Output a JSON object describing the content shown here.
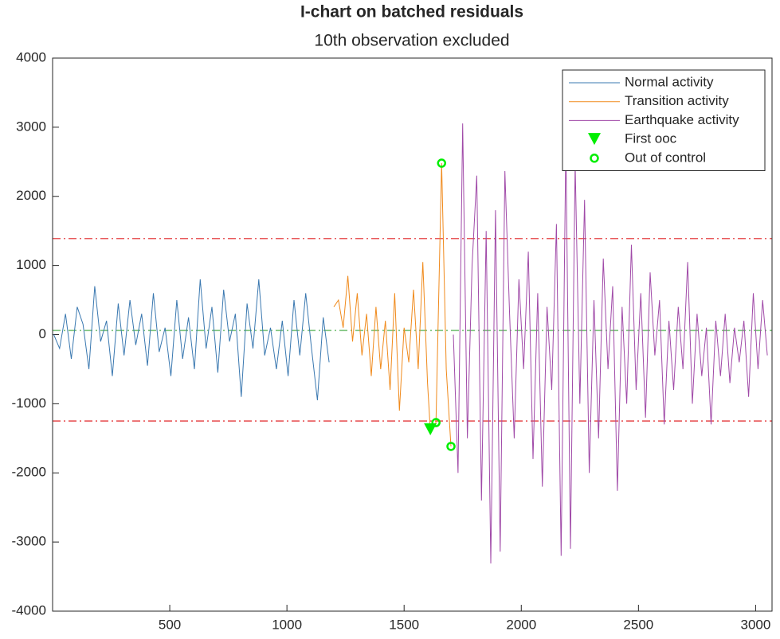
{
  "chart_data": {
    "type": "line",
    "title": "I-chart on batched residuals",
    "subtitle": "10th observation excluded",
    "xlim": [
      0,
      3070
    ],
    "ylim": [
      -4000,
      4000
    ],
    "xticks": [
      500,
      1000,
      1500,
      2000,
      2500,
      3000
    ],
    "yticks": [
      -4000,
      -3000,
      -2000,
      -1000,
      0,
      1000,
      2000,
      3000,
      4000
    ],
    "legend": "top-right",
    "hlines": [
      {
        "value": 1390,
        "color": "#e8585a",
        "style": "dashdot"
      },
      {
        "value": 60,
        "color": "#7dc47d",
        "style": "dashdot"
      },
      {
        "value": -1250,
        "color": "#e8585a",
        "style": "dashdot"
      }
    ],
    "series": [
      {
        "name": "Normal activity",
        "color": "#3a78b0",
        "marker": "none",
        "x": [
          5,
          30,
          55,
          80,
          105,
          130,
          155,
          180,
          205,
          230,
          255,
          280,
          305,
          330,
          355,
          380,
          405,
          430,
          455,
          480,
          505,
          530,
          555,
          580,
          605,
          630,
          655,
          680,
          705,
          730,
          755,
          780,
          805,
          830,
          855,
          880,
          905,
          930,
          955,
          980,
          1005,
          1030,
          1055,
          1080,
          1105,
          1130,
          1155,
          1180
        ],
        "values": [
          0,
          -200,
          300,
          -350,
          400,
          150,
          -500,
          700,
          -100,
          200,
          -600,
          450,
          -300,
          500,
          -150,
          300,
          -450,
          600,
          -250,
          100,
          -600,
          500,
          -350,
          250,
          -500,
          800,
          -200,
          400,
          -550,
          650,
          -100,
          300,
          -900,
          450,
          -200,
          800,
          -300,
          100,
          -500,
          200,
          -600,
          500,
          -300,
          600,
          -200,
          -950,
          250,
          -400
        ]
      },
      {
        "name": "Transition activity",
        "color": "#f08a1c",
        "marker": "none",
        "x": [
          1200,
          1220,
          1240,
          1260,
          1280,
          1300,
          1320,
          1340,
          1360,
          1380,
          1400,
          1420,
          1440,
          1460,
          1480,
          1500,
          1520,
          1540,
          1560,
          1580,
          1600,
          1612,
          1636,
          1660,
          1680,
          1700
        ],
        "values": [
          400,
          500,
          100,
          850,
          -100,
          600,
          -300,
          300,
          -600,
          400,
          -500,
          200,
          -800,
          600,
          -1100,
          100,
          -400,
          650,
          -500,
          1050,
          -700,
          -1375,
          -1272,
          2480,
          -500,
          -1617
        ]
      },
      {
        "name": "Earthquake activity",
        "color": "#a04aa8",
        "marker": "none",
        "x": [
          1710,
          1730,
          1750,
          1770,
          1790,
          1810,
          1830,
          1850,
          1870,
          1890,
          1910,
          1930,
          1950,
          1970,
          1990,
          2010,
          2030,
          2050,
          2070,
          2090,
          2110,
          2130,
          2150,
          2170,
          2190,
          2210,
          2230,
          2250,
          2270,
          2290,
          2310,
          2330,
          2350,
          2370,
          2390,
          2410,
          2430,
          2450,
          2470,
          2490,
          2510,
          2530,
          2550,
          2570,
          2590,
          2610,
          2630,
          2650,
          2670,
          2690,
          2710,
          2730,
          2750,
          2770,
          2790,
          2810,
          2830,
          2850,
          2870,
          2890,
          2910,
          2930,
          2950,
          2970,
          2990,
          3010,
          3030,
          3050
        ],
        "values": [
          0,
          -2000,
          3055,
          -1500,
          1000,
          2300,
          -2400,
          1500,
          -3310,
          1800,
          -3140,
          2365,
          300,
          -1500,
          800,
          -500,
          1200,
          -1800,
          600,
          -2200,
          400,
          -800,
          1600,
          -3200,
          2770,
          -3100,
          2480,
          -1000,
          1950,
          -2000,
          500,
          -1500,
          1100,
          -500,
          700,
          -2260,
          400,
          -1000,
          1300,
          -800,
          600,
          -1200,
          900,
          -300,
          500,
          -1300,
          200,
          -800,
          400,
          -500,
          1050,
          -1000,
          300,
          -600,
          100,
          -1300,
          200,
          -600,
          300,
          -700,
          100,
          -400,
          200,
          -900,
          600,
          -500,
          500,
          -300
        ]
      },
      {
        "name": "First ooc",
        "color": "#00ee00",
        "marker": "triangle-down",
        "x": [
          1612
        ],
        "values": [
          -1375
        ]
      },
      {
        "name": "Out of control",
        "color": "#00ee00",
        "marker": "circle",
        "x": [
          1636,
          1660,
          1700
        ],
        "values": [
          -1272,
          2480,
          -1617
        ]
      }
    ]
  }
}
